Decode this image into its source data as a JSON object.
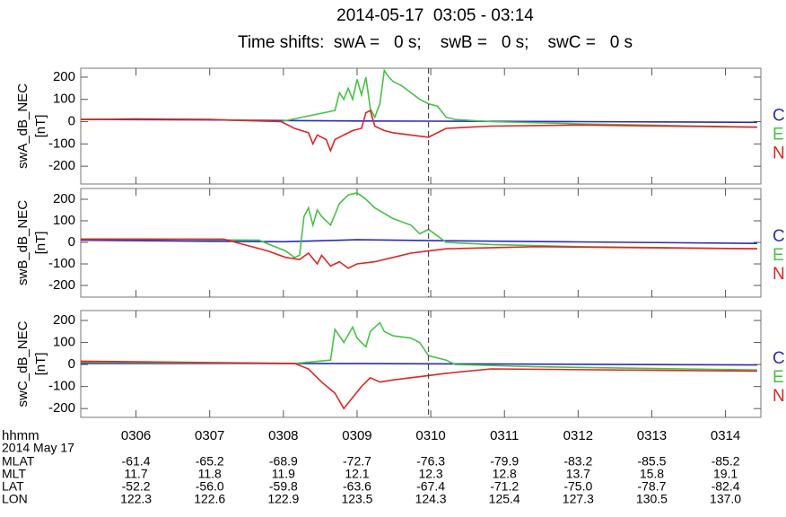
{
  "figure": {
    "title": "2014-05-17  03:05 - 03:14",
    "subtitle": "Time shifts:  swA =   0 s;    swB =   0 s;    swC =   0 s"
  },
  "chart_data": [
    {
      "type": "line",
      "ylabel": "swA_dB_NEC",
      "yunit": "[nT]",
      "xlim": [
        5.25,
        14.48
      ],
      "ylim": [
        -280,
        240
      ],
      "xticks": [
        {
          "value": 6,
          "label": "0306"
        },
        {
          "value": 7,
          "label": "0307"
        },
        {
          "value": 8,
          "label": "0308"
        },
        {
          "value": 9,
          "label": "0309"
        },
        {
          "value": 10,
          "label": "0310"
        },
        {
          "value": 11,
          "label": "0311"
        },
        {
          "value": 12,
          "label": "0312"
        },
        {
          "value": 13,
          "label": "0313"
        },
        {
          "value": 14,
          "label": "0314"
        }
      ],
      "yticks": [
        -200,
        -100,
        0,
        100,
        200
      ],
      "marker_x": 9.97,
      "series": [
        {
          "name": "C",
          "color": "#2b2bb8",
          "x": [
            5.25,
            7,
            8,
            9,
            10,
            12,
            14.43
          ],
          "values": [
            10,
            8,
            5,
            3,
            2,
            0,
            -3
          ]
        },
        {
          "name": "E",
          "color": "#47c247",
          "x": [
            5.25,
            6,
            7,
            7.97,
            8.4,
            8.7,
            8.76,
            8.82,
            8.88,
            8.94,
            9.0,
            9.06,
            9.12,
            9.18,
            9.24,
            9.31,
            9.37,
            9.43,
            9.49,
            9.61,
            9.73,
            9.85,
            9.97,
            10.09,
            10.21,
            10.33,
            10.82,
            12.03,
            14.43
          ],
          "values": [
            10,
            12,
            10,
            0,
            30,
            50,
            130,
            100,
            150,
            100,
            190,
            120,
            200,
            60,
            20,
            80,
            230,
            200,
            180,
            160,
            130,
            100,
            80,
            70,
            20,
            10,
            0,
            -10,
            -25
          ]
        },
        {
          "name": "N",
          "color": "#e02424",
          "x": [
            5.25,
            6,
            7,
            7.97,
            8.15,
            8.34,
            8.4,
            8.46,
            8.58,
            8.64,
            8.7,
            8.82,
            8.94,
            9.06,
            9.12,
            9.18,
            9.24,
            9.37,
            9.49,
            9.73,
            9.97,
            10.09,
            10.21,
            10.82,
            12.03,
            14.43
          ],
          "values": [
            10,
            12,
            10,
            0,
            -30,
            -50,
            -100,
            -60,
            -80,
            -130,
            -80,
            -60,
            -40,
            -30,
            40,
            50,
            -20,
            -40,
            -50,
            -60,
            -70,
            -50,
            -30,
            -20,
            -15,
            -25
          ]
        }
      ]
    },
    {
      "type": "line",
      "ylabel": "swB_dB_NEC",
      "yunit": "[nT]",
      "xlim": [
        5.25,
        14.48
      ],
      "ylim": [
        -254,
        250
      ],
      "xticks": [
        {
          "value": 6,
          "label": "0306"
        },
        {
          "value": 7,
          "label": "0307"
        },
        {
          "value": 8,
          "label": "0308"
        },
        {
          "value": 9,
          "label": "0309"
        },
        {
          "value": 10,
          "label": "0310"
        },
        {
          "value": 11,
          "label": "0311"
        },
        {
          "value": 12,
          "label": "0312"
        },
        {
          "value": 13,
          "label": "0313"
        },
        {
          "value": 14,
          "label": "0314"
        }
      ],
      "yticks": [
        -200,
        -100,
        0,
        100,
        200
      ],
      "marker_x": 9.97,
      "series": [
        {
          "name": "C",
          "color": "#2b2bb8",
          "x": [
            5.25,
            7,
            8,
            9,
            10,
            12,
            14.43
          ],
          "values": [
            10,
            5,
            3,
            12,
            8,
            2,
            -5
          ]
        },
        {
          "name": "E",
          "color": "#47c247",
          "x": [
            5.25,
            6,
            7.67,
            8.03,
            8.15,
            8.22,
            8.28,
            8.34,
            8.4,
            8.46,
            8.52,
            8.64,
            8.76,
            8.88,
            9.0,
            9.12,
            9.24,
            9.49,
            9.73,
            9.85,
            9.97,
            10.09,
            10.21,
            10.82,
            12.03,
            14.43
          ],
          "values": [
            15,
            15,
            10,
            -40,
            -70,
            -60,
            120,
            160,
            80,
            150,
            120,
            80,
            180,
            220,
            230,
            200,
            160,
            110,
            80,
            40,
            60,
            30,
            0,
            -10,
            -20,
            -30
          ]
        },
        {
          "name": "N",
          "color": "#e02424",
          "x": [
            5.25,
            7.19,
            7.79,
            8.03,
            8.22,
            8.34,
            8.46,
            8.52,
            8.64,
            8.76,
            8.88,
            9.0,
            9.24,
            9.49,
            9.73,
            9.97,
            10.21,
            11.42,
            14.43
          ],
          "values": [
            15,
            15,
            -40,
            -70,
            -80,
            -50,
            -100,
            -60,
            -110,
            -90,
            -120,
            -100,
            -90,
            -70,
            -50,
            -40,
            -30,
            -20,
            -30
          ]
        }
      ]
    },
    {
      "type": "line",
      "ylabel": "swC_dB_NEC",
      "yunit": "[nT]",
      "xlim": [
        5.25,
        14.48
      ],
      "ylim": [
        -240,
        245
      ],
      "xticks": [
        {
          "value": 6,
          "label": "0306"
        },
        {
          "value": 7,
          "label": "0307"
        },
        {
          "value": 8,
          "label": "0308"
        },
        {
          "value": 9,
          "label": "0309"
        },
        {
          "value": 10,
          "label": "0310"
        },
        {
          "value": 11,
          "label": "0311"
        },
        {
          "value": 12,
          "label": "0312"
        },
        {
          "value": 13,
          "label": "0313"
        },
        {
          "value": 14,
          "label": "0314"
        }
      ],
      "yticks": [
        -200,
        -100,
        0,
        100,
        200
      ],
      "marker_x": 9.97,
      "series": [
        {
          "name": "C",
          "color": "#2b2bb8",
          "x": [
            5.25,
            7,
            9,
            11,
            14.43
          ],
          "values": [
            5,
            5,
            4,
            2,
            -2
          ]
        },
        {
          "name": "E",
          "color": "#47c247",
          "x": [
            5.25,
            8.15,
            8.64,
            8.7,
            8.82,
            8.94,
            9.0,
            9.12,
            9.18,
            9.31,
            9.37,
            9.49,
            9.73,
            9.85,
            9.97,
            10.21,
            10.33,
            11.42,
            14.43
          ],
          "values": [
            10,
            5,
            20,
            160,
            100,
            170,
            120,
            80,
            150,
            190,
            150,
            130,
            120,
            100,
            40,
            20,
            0,
            -10,
            -25
          ]
        },
        {
          "name": "N",
          "color": "#e02424",
          "x": [
            5.25,
            8.15,
            8.34,
            8.52,
            8.7,
            8.82,
            8.94,
            9.06,
            9.18,
            9.31,
            9.49,
            9.73,
            9.97,
            10.21,
            10.82,
            14.43
          ],
          "values": [
            15,
            5,
            -20,
            -80,
            -130,
            -200,
            -150,
            -100,
            -60,
            -80,
            -70,
            -60,
            -50,
            -40,
            -20,
            -30
          ]
        }
      ]
    }
  ],
  "ephemeris": {
    "header": "hhmm",
    "date": "2014 May 17",
    "rows": [
      {
        "name": "MLAT",
        "values": [
          "-61.4",
          "-65.2",
          "-68.9",
          "-72.7",
          "-76.3",
          "-79.9",
          "-83.2",
          "-85.5",
          "-85.2"
        ]
      },
      {
        "name": "MLT",
        "values": [
          "11.7",
          "11.8",
          "11.9",
          "12.1",
          "12.3",
          "12.8",
          "13.7",
          "15.8",
          "19.1"
        ]
      },
      {
        "name": "LAT",
        "values": [
          "-52.2",
          "-56.0",
          "-59.8",
          "-63.6",
          "-67.4",
          "-71.2",
          "-75.0",
          "-78.7",
          "-82.4"
        ]
      },
      {
        "name": "LON",
        "values": [
          "122.3",
          "122.6",
          "122.9",
          "123.5",
          "124.3",
          "125.4",
          "127.3",
          "130.5",
          "137.0"
        ]
      }
    ]
  }
}
